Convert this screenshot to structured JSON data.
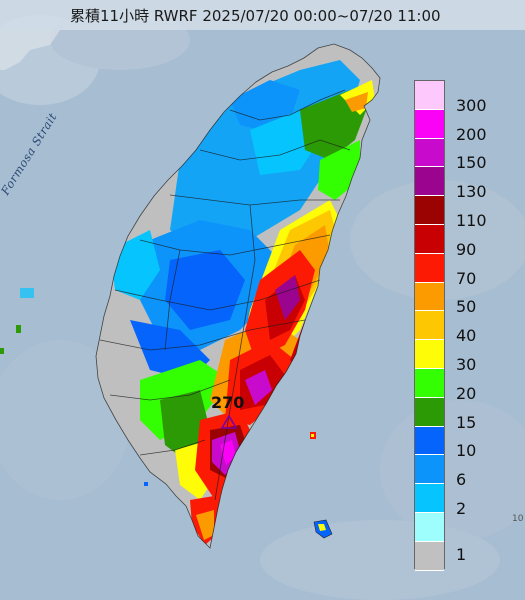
{
  "title": "累積11小時 RWRF 2025/07/20 00:00~07/20 11:00",
  "strait_label": "Formosa Strait",
  "max_marker": {
    "label": "270",
    "icon": "triangle-max-marker-icon"
  },
  "corner_mark": "10",
  "legend": {
    "items": [
      {
        "value": "300",
        "color": "#fdc8fb"
      },
      {
        "value": "200",
        "color": "#fa02f5"
      },
      {
        "value": "150",
        "color": "#c70acb"
      },
      {
        "value": "130",
        "color": "#9b048e"
      },
      {
        "value": "110",
        "color": "#9b0303"
      },
      {
        "value": "90",
        "color": "#c90003"
      },
      {
        "value": "70",
        "color": "#fd1a05"
      },
      {
        "value": "50",
        "color": "#fc9b00"
      },
      {
        "value": "40",
        "color": "#fdc802"
      },
      {
        "value": "30",
        "color": "#fefd07"
      },
      {
        "value": "20",
        "color": "#33ff02"
      },
      {
        "value": "15",
        "color": "#2b9a05"
      },
      {
        "value": "10",
        "color": "#0564fb"
      },
      {
        "value": "6",
        "color": "#0d94fb"
      },
      {
        "value": "2",
        "color": "#06c4fd"
      },
      {
        "value": "1",
        "color": "#9dfefd"
      },
      {
        "value": "",
        "color": "#c0c0c0"
      }
    ]
  }
}
